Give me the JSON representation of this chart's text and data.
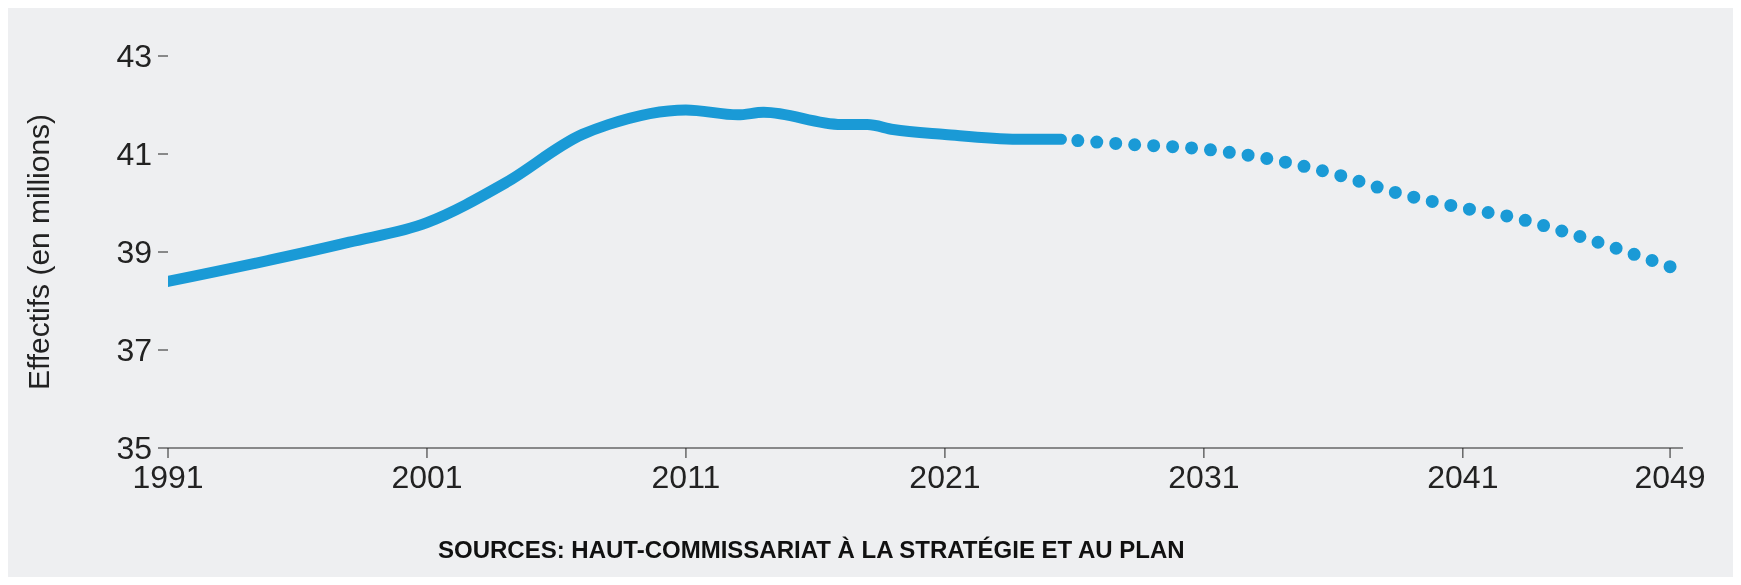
{
  "chart_data": {
    "type": "line",
    "ylabel": "Effectifs (en millions)",
    "annotations": [
      "SOURCES: HAUT-COMMISSARIAT À LA STRATÉGIE ET AU PLAN"
    ],
    "xlim": [
      1991,
      2049.5
    ],
    "xticks": [
      1991,
      2001,
      2011,
      2021,
      2031,
      2041,
      2049
    ],
    "ylim": [
      35,
      43
    ],
    "yticks": [
      35,
      37,
      39,
      41,
      43
    ],
    "series": [
      {
        "color": "#1a9ad6",
        "line_style": "solid",
        "x": [
          1991,
          1998,
          2001,
          2004,
          2007,
          2008,
          2011,
          2013,
          2014,
          2017,
          2018,
          2019,
          2021,
          2024,
          2025.5
        ],
        "values": [
          38.4,
          39.2,
          39.6,
          40.4,
          41.4,
          41.6,
          41.9,
          41.8,
          41.85,
          41.6,
          41.6,
          41.5,
          41.4,
          41.3,
          41.3
        ]
      },
      {
        "color": "#1a9ad6",
        "line_style": "dotted",
        "x": [
          2025.5,
          2028,
          2031,
          2036,
          2038.5,
          2041,
          2043,
          2045,
          2049
        ],
        "values": [
          41.3,
          41.2,
          41.1,
          40.6,
          40.2,
          39.9,
          39.7,
          39.4,
          38.7
        ]
      }
    ]
  }
}
